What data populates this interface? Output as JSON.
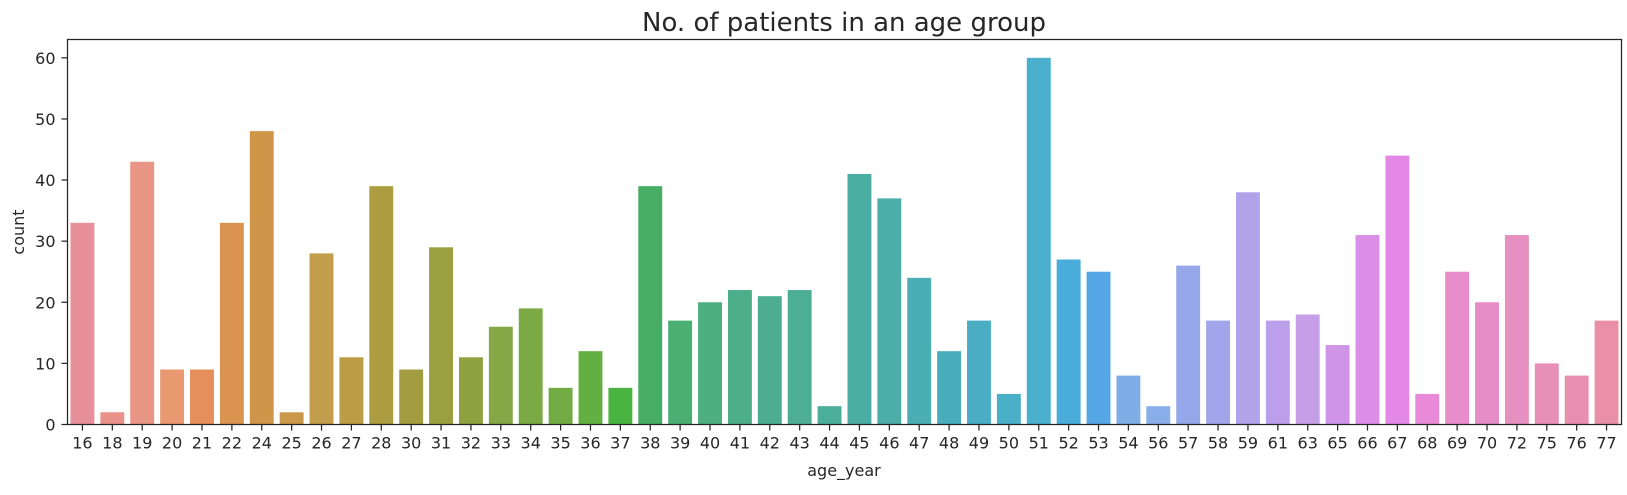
{
  "chart_data": {
    "type": "bar",
    "title": "No. of patients in an age group",
    "xlabel": "age_year",
    "ylabel": "count",
    "ylim": [
      0,
      63
    ],
    "yticks": [
      0,
      10,
      20,
      30,
      40,
      50,
      60
    ],
    "grid": false,
    "legend": "none",
    "categories": [
      "16",
      "18",
      "19",
      "20",
      "21",
      "22",
      "24",
      "25",
      "26",
      "27",
      "28",
      "30",
      "31",
      "32",
      "33",
      "34",
      "35",
      "36",
      "37",
      "38",
      "39",
      "40",
      "41",
      "42",
      "43",
      "44",
      "45",
      "46",
      "47",
      "48",
      "49",
      "50",
      "51",
      "52",
      "53",
      "54",
      "56",
      "57",
      "58",
      "59",
      "61",
      "63",
      "65",
      "66",
      "67",
      "68",
      "69",
      "70",
      "72",
      "75",
      "76",
      "77"
    ],
    "values": [
      33,
      2,
      43,
      9,
      9,
      33,
      48,
      2,
      28,
      11,
      39,
      9,
      29,
      11,
      16,
      19,
      6,
      12,
      6,
      39,
      17,
      20,
      22,
      21,
      22,
      3,
      41,
      37,
      24,
      12,
      17,
      5,
      60,
      27,
      25,
      8,
      3,
      26,
      17,
      38,
      17,
      18,
      13,
      31,
      44,
      5,
      25,
      20,
      31,
      10,
      8,
      17
    ],
    "colors": [
      "#e8909a",
      "#e9928a",
      "#e99585",
      "#e9996f",
      "#e68f5a",
      "#da944f",
      "#cf9548",
      "#c9984a",
      "#c29e4c",
      "#bb9d45",
      "#ab9d40",
      "#a39d41",
      "#9c9f40",
      "#90a140",
      "#86a745",
      "#7ba944",
      "#72ab44",
      "#63b042",
      "#4ab440",
      "#47ac64",
      "#4aaf71",
      "#4dae80",
      "#4cae8a",
      "#4dae8f",
      "#4cae94",
      "#4bae9a",
      "#4baea3",
      "#4baea9",
      "#4baeb5",
      "#4aadbc",
      "#4aadc3",
      "#4ab0c8",
      "#4ab0cd",
      "#4aacd8",
      "#54a6e4",
      "#7faee6",
      "#8aaee9",
      "#97a8ea",
      "#a3a5ea",
      "#b0a3ea",
      "#bc9fea",
      "#c69ee7",
      "#d094e6",
      "#da8ee8",
      "#e388e6",
      "#e88ad8",
      "#e78dcc",
      "#e68cc6",
      "#e590c0",
      "#e78fb8",
      "#e88fb0",
      "#e98fa8"
    ]
  }
}
